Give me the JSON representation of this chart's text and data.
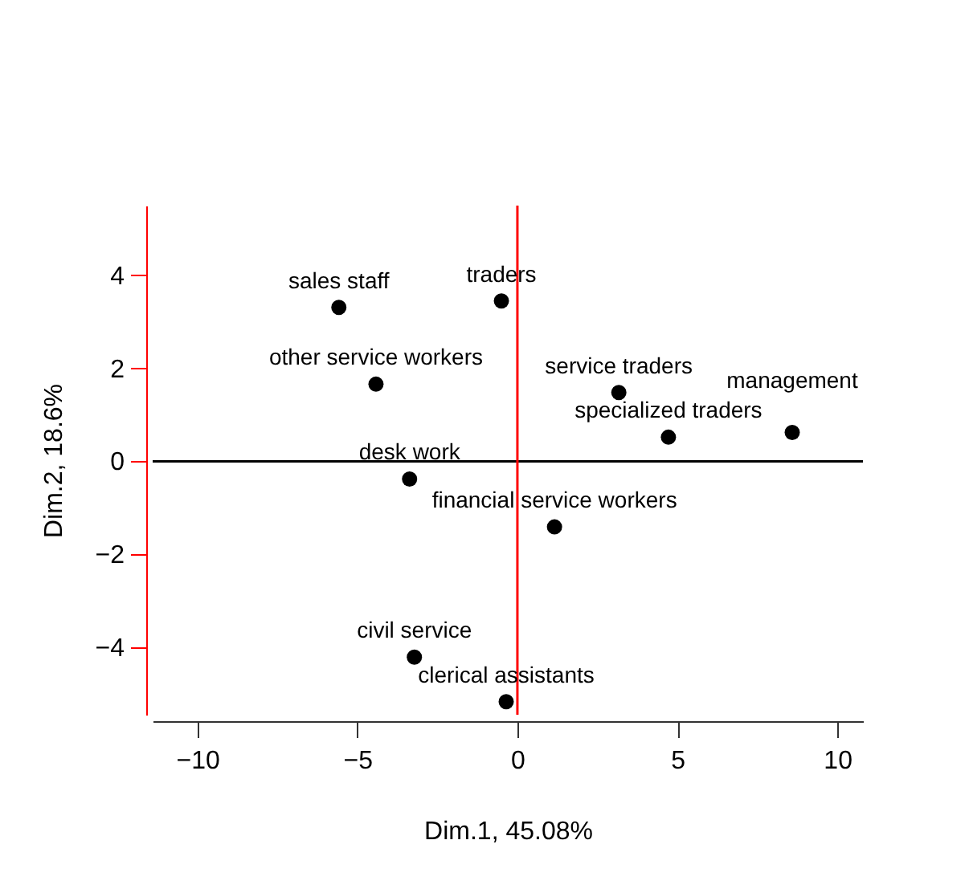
{
  "chart_data": {
    "type": "scatter",
    "xlabel": "Dim.1, 45.08%",
    "ylabel": "Dim.2, 18.6%",
    "x": [
      -5.58,
      -0.5,
      -4.42,
      3.17,
      4.72,
      8.59,
      -3.37,
      1.16,
      -3.22,
      -0.35
    ],
    "values": [
      3.31,
      3.45,
      1.66,
      1.48,
      0.52,
      0.62,
      -0.38,
      -1.41,
      -4.21,
      -5.17
    ],
    "color": "#000000",
    "marker": "circle",
    "xlim": [
      -11.4,
      10.8
    ],
    "xticks": [
      -10,
      -5,
      0,
      5,
      10
    ],
    "ylim": [
      -5.45,
      5.5
    ],
    "yticks": [
      -4,
      -2,
      0,
      2,
      4
    ],
    "ref_lines": [
      {
        "axis": "y",
        "value": 0,
        "color": "#000000"
      },
      {
        "axis": "x",
        "value": 0,
        "color": "#ff0000"
      }
    ],
    "annotations": [
      {
        "text": "sales staff",
        "x": -5.58,
        "y": 3.31
      },
      {
        "text": "traders",
        "x": -0.5,
        "y": 3.45
      },
      {
        "text": "other service workers",
        "x": -4.42,
        "y": 1.66
      },
      {
        "text": "service traders",
        "x": 3.17,
        "y": 1.48
      },
      {
        "text": "specialized traders",
        "x": 4.72,
        "y": 0.52
      },
      {
        "text": "management",
        "x": 8.59,
        "y": 0.62
      },
      {
        "text": "desk work",
        "x": -3.37,
        "y": -0.38
      },
      {
        "text": "financial service workers",
        "x": 1.16,
        "y": -1.41
      },
      {
        "text": "civil service",
        "x": -3.22,
        "y": -4.21
      },
      {
        "text": "clerical assistants",
        "x": -0.35,
        "y": -5.17
      }
    ]
  }
}
